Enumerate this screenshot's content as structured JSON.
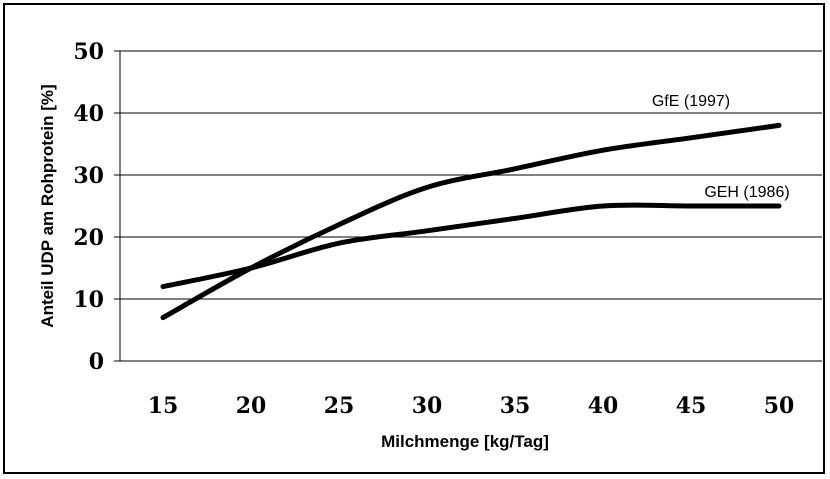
{
  "chart_data": {
    "type": "line",
    "title": "",
    "xlabel": "Milchmenge [kg/Tag]",
    "ylabel": "Anteil UDP am Rohprotein [%]",
    "x": [
      15,
      20,
      25,
      30,
      35,
      40,
      45,
      50
    ],
    "x_ticks": [
      "15",
      "20",
      "25",
      "30",
      "35",
      "40",
      "45",
      "50"
    ],
    "y_ticks": [
      "0",
      "10",
      "20",
      "30",
      "40",
      "50"
    ],
    "ylim": [
      0,
      50
    ],
    "grid": "horizontal",
    "legend": "inline labels at line ends",
    "series": [
      {
        "name": "GfE (1997)",
        "values": [
          7,
          15,
          22,
          28,
          31,
          34,
          36,
          38
        ]
      },
      {
        "name": "GEH (1986)",
        "values": [
          12,
          15,
          19,
          21,
          23,
          25,
          25,
          25
        ]
      }
    ],
    "line_color": "#000000"
  }
}
